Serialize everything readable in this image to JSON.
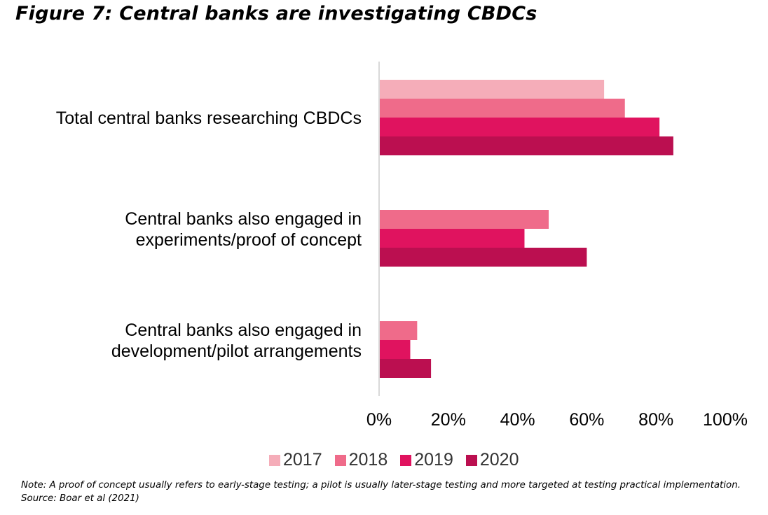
{
  "figure_title": "Figure 7: Central banks are investigating CBDCs",
  "note": "Note: A proof of concept usually refers to early-stage testing; a pilot is usually later-stage testing and more targeted at testing practical implementation. Source: Boar et al (2021)",
  "colors": {
    "2017": "#f5adb9",
    "2018": "#ef6b8a",
    "2019": "#e0135f",
    "2020": "#bb0f50",
    "axis": "#d9d9d9"
  },
  "chart_data": {
    "type": "bar",
    "orientation": "horizontal",
    "categories": [
      [
        "Total central banks researching CBDCs"
      ],
      [
        "Central banks also engaged in",
        "experiments/proof of concept"
      ],
      [
        "Central banks also engaged in",
        "development/pilot arrangements"
      ]
    ],
    "series": [
      {
        "name": "2017",
        "values": [
          65,
          null,
          null
        ]
      },
      {
        "name": "2018",
        "values": [
          71,
          49,
          11
        ]
      },
      {
        "name": "2019",
        "values": [
          81,
          42,
          9
        ]
      },
      {
        "name": "2020",
        "values": [
          85,
          60,
          15
        ]
      }
    ],
    "x_ticks": [
      "0%",
      "20%",
      "40%",
      "60%",
      "80%",
      "100%"
    ],
    "xlim": [
      0,
      100
    ],
    "grid": false,
    "legend_position": "bottom"
  }
}
